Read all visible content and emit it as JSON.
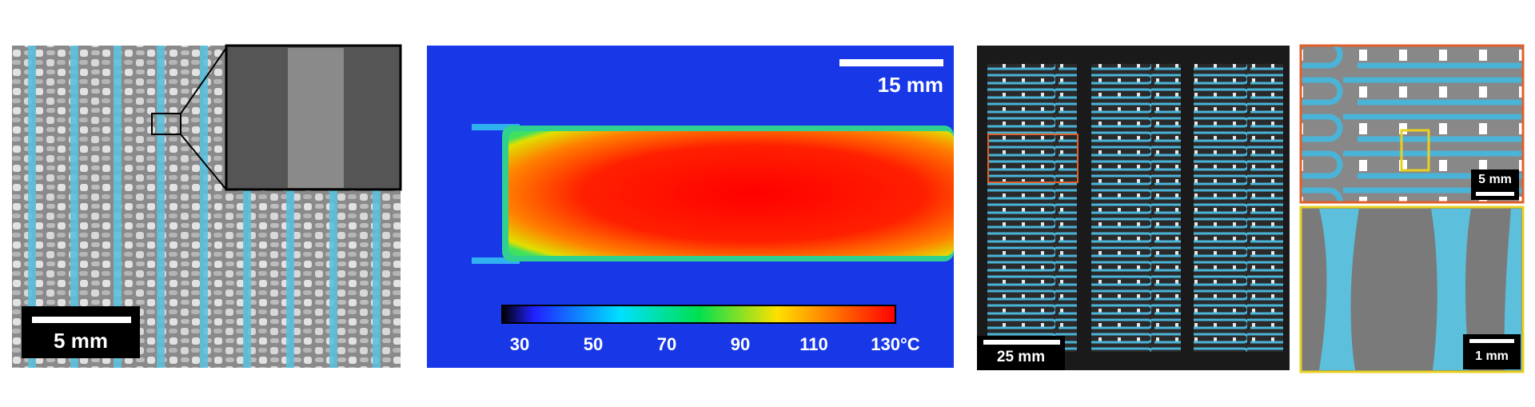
{
  "panels": [
    {
      "scale_bar": "5 mm"
    },
    {
      "scale_bar": "15 mm",
      "colorbar": {
        "ticks": [
          "30",
          "50",
          "70",
          "90",
          "110",
          "130°C"
        ]
      }
    },
    {
      "scale_bar": "25 mm"
    },
    {
      "scale_bar": "5 mm"
    },
    {
      "scale_bar": "1 mm"
    }
  ]
}
